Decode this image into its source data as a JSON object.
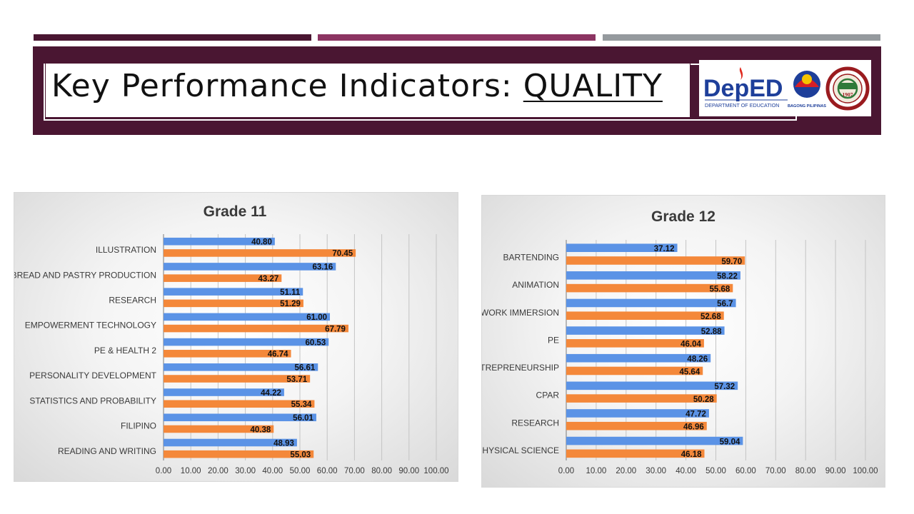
{
  "slide": {
    "title_prefix": "Key Performance Indicators: ",
    "title_keyword": "QUALITY",
    "logos": {
      "deped_main": "DepED",
      "deped_sub": "DEPARTMENT OF EDUCATION",
      "bagong": "BAGONG PILIPINAS",
      "seal_year": "1907"
    },
    "colors": {
      "maroon": "#4a1632",
      "magenta": "#8c3462",
      "gray": "#959a9e",
      "series_blue": "#5b93e6",
      "series_orange": "#f4883a"
    }
  },
  "chart_data": [
    {
      "type": "bar",
      "orientation": "horizontal",
      "title": "Grade 11",
      "categories": [
        "ILLUSTRATION",
        "BREAD AND PASTRY PRODUCTION",
        "RESEARCH",
        "EMPOWERMENT TECHNOLOGY",
        "PE & HEALTH 2",
        "PERSONALITY DEVELOPMENT",
        "STATISTICS AND PROBABILITY",
        "FILIPINO",
        "READING AND WRITING"
      ],
      "series": [
        {
          "name": "series-1",
          "color": "#5b93e6",
          "values": [
            40.8,
            63.16,
            51.11,
            61.0,
            60.53,
            56.61,
            44.22,
            56.01,
            48.93
          ]
        },
        {
          "name": "series-2",
          "color": "#f4883a",
          "values": [
            70.45,
            43.27,
            51.29,
            67.79,
            46.74,
            53.71,
            55.34,
            40.38,
            55.03
          ]
        }
      ],
      "labels": [
        [
          "40.80",
          "63.16",
          "51.11",
          "61.00",
          "60.53",
          "56.61",
          "44.22",
          "56.01",
          "48.93"
        ],
        [
          "70.45",
          "43.27",
          "51.29",
          "67.79",
          "46.74",
          "53.71",
          "55.34",
          "40.38",
          "55.03"
        ]
      ],
      "xlim": [
        0,
        100
      ],
      "ticks": [
        "0.00",
        "10.00",
        "20.00",
        "30.00",
        "40.00",
        "50.00",
        "60.00",
        "70.00",
        "80.00",
        "90.00",
        "100.00"
      ],
      "grid": true,
      "legend": "none"
    },
    {
      "type": "bar",
      "orientation": "horizontal",
      "title": "Grade 12",
      "categories": [
        "BARTENDING",
        "ANIMATION",
        "WORK IMMERSION",
        "PE",
        "ENTREPRENEURSHIP",
        "CPAR",
        "RESEARCH",
        "PHYSICAL SCIENCE"
      ],
      "series": [
        {
          "name": "series-1",
          "color": "#5b93e6",
          "values": [
            37.12,
            58.22,
            56.7,
            52.88,
            48.26,
            57.32,
            47.72,
            59.04
          ]
        },
        {
          "name": "series-2",
          "color": "#f4883a",
          "values": [
            59.7,
            55.68,
            52.68,
            46.04,
            45.64,
            50.28,
            46.96,
            46.18
          ]
        }
      ],
      "labels": [
        [
          "37.12",
          "58.22",
          "56.7",
          "52.88",
          "48.26",
          "57.32",
          "47.72",
          "59.04"
        ],
        [
          "59.70",
          "55.68",
          "52.68",
          "46.04",
          "45.64",
          "50.28",
          "46.96",
          "46.18"
        ]
      ],
      "xlim": [
        0,
        100
      ],
      "ticks": [
        "0.00",
        "10.00",
        "20.00",
        "30.00",
        "40.00",
        "50.00",
        "60.00",
        "70.00",
        "80.00",
        "90.00",
        "100.00"
      ],
      "grid": true,
      "legend": "none"
    }
  ]
}
